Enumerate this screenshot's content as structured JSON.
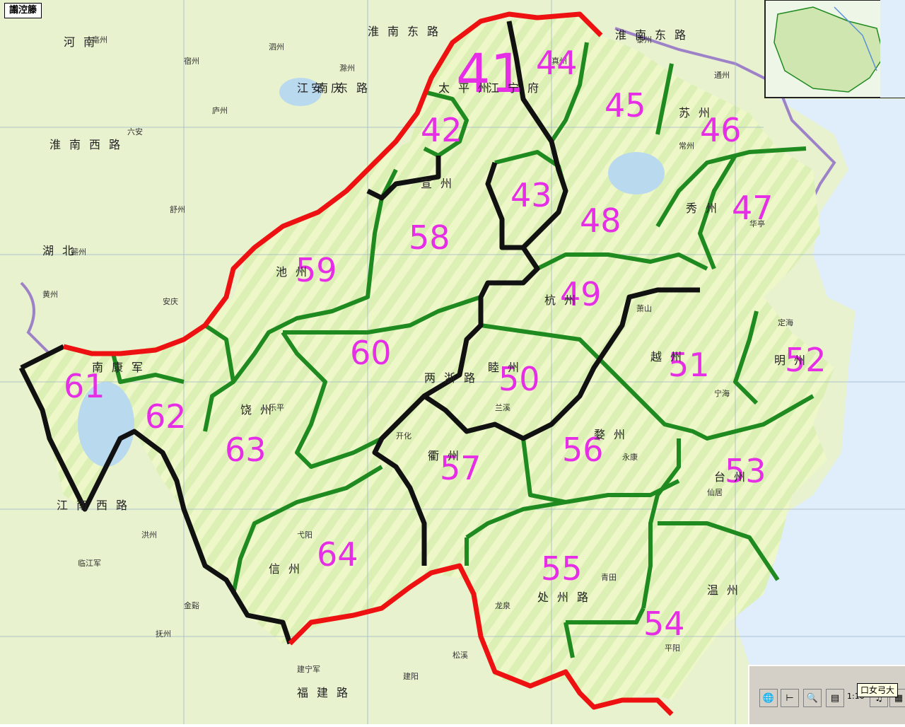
{
  "window": {
    "title": "譾涳籐"
  },
  "toolbar": {
    "tooltip": "口女弓大",
    "scale_label": "1:10",
    "buttons": [
      {
        "name": "globe-icon",
        "glyph": "🌐"
      },
      {
        "name": "tree-icon",
        "glyph": "⊢"
      },
      {
        "name": "zoom-icon",
        "glyph": "🔍"
      },
      {
        "name": "layers-icon",
        "glyph": "▤"
      },
      {
        "name": "music-icon",
        "glyph": "♫"
      },
      {
        "name": "grid-icon",
        "glyph": "▦"
      }
    ]
  },
  "regions": [
    {
      "id": "41",
      "label": "41",
      "size": "big"
    },
    {
      "id": "42",
      "label": "42"
    },
    {
      "id": "43",
      "label": "43"
    },
    {
      "id": "44",
      "label": "44"
    },
    {
      "id": "45",
      "label": "45"
    },
    {
      "id": "46",
      "label": "46"
    },
    {
      "id": "47",
      "label": "47"
    },
    {
      "id": "48",
      "label": "48"
    },
    {
      "id": "49",
      "label": "49"
    },
    {
      "id": "50",
      "label": "50"
    },
    {
      "id": "51",
      "label": "51"
    },
    {
      "id": "52",
      "label": "52"
    },
    {
      "id": "53",
      "label": "53"
    },
    {
      "id": "54",
      "label": "54"
    },
    {
      "id": "55",
      "label": "55"
    },
    {
      "id": "56",
      "label": "56"
    },
    {
      "id": "57",
      "label": "57"
    },
    {
      "id": "58",
      "label": "58"
    },
    {
      "id": "59",
      "label": "59"
    },
    {
      "id": "60",
      "label": "60"
    },
    {
      "id": "61",
      "label": "61"
    },
    {
      "id": "62",
      "label": "62"
    },
    {
      "id": "63",
      "label": "63"
    },
    {
      "id": "64",
      "label": "64"
    }
  ],
  "route_labels": [
    {
      "text": "淮南东路"
    },
    {
      "text": "淮南东路"
    },
    {
      "text": "淮南西路"
    },
    {
      "text": "江南东路"
    },
    {
      "text": "两浙路"
    },
    {
      "text": "江南西路"
    },
    {
      "text": "福建路"
    },
    {
      "text": "河南"
    },
    {
      "text": "湖北"
    },
    {
      "text": "处州路"
    },
    {
      "text": "信州"
    },
    {
      "text": "饶州"
    },
    {
      "text": "宣州"
    },
    {
      "text": "睦州"
    },
    {
      "text": "越州"
    },
    {
      "text": "温州"
    },
    {
      "text": "台州"
    },
    {
      "text": "明州"
    },
    {
      "text": "秀州"
    },
    {
      "text": "苏州"
    },
    {
      "text": "杭州"
    },
    {
      "text": "衢州"
    },
    {
      "text": "婺州"
    },
    {
      "text": "池州"
    },
    {
      "text": "江宁府"
    },
    {
      "text": "太平州"
    },
    {
      "text": "南康军"
    },
    {
      "text": "安庆"
    }
  ],
  "colors": {
    "land": "#dcefb4",
    "land_stripe": "#eef7c8",
    "sea": "#dfeefa",
    "region_border_red": "#ee1111",
    "region_border_black": "#111111",
    "region_border_green": "#1f8a1f",
    "label_magenta": "#e62ee6",
    "river": "#5b8fd6"
  }
}
